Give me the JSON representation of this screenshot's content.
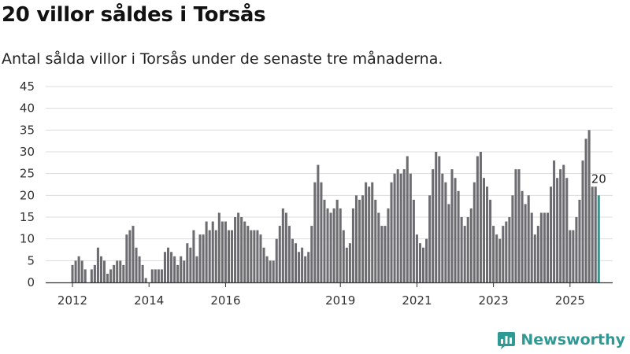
{
  "title": "20 villor såldes i Torsås",
  "subtitle": "Antal sålda villor i Torsås under de senaste tre månaderna.",
  "brand": "Newsworthy",
  "colors": {
    "bar": "#6d6c70",
    "highlight": "#2b9a93",
    "grid": "#dcdcdc",
    "axis": "#333333",
    "brand": "#2e9a93"
  },
  "chart_data": {
    "type": "bar",
    "title": "20 villor såldes i Torsås",
    "xlabel": "",
    "ylabel": "",
    "ylim": [
      0,
      45
    ],
    "yticks": [
      0,
      5,
      10,
      15,
      20,
      25,
      30,
      35,
      40,
      45
    ],
    "xtick_labels": [
      {
        "label": "2012",
        "index": 0
      },
      {
        "label": "2014",
        "index": 24
      },
      {
        "label": "2016",
        "index": 48
      },
      {
        "label": "2019",
        "index": 84
      },
      {
        "label": "2021",
        "index": 108
      },
      {
        "label": "2023",
        "index": 132
      },
      {
        "label": "2025",
        "index": 156
      }
    ],
    "first_month": "2012-01",
    "last_value_label": "20",
    "highlight_last": true,
    "values": [
      4,
      5,
      6,
      5,
      3,
      0,
      3,
      4,
      8,
      6,
      5,
      2,
      3,
      4,
      5,
      5,
      4,
      11,
      12,
      13,
      8,
      6,
      4,
      1,
      0,
      3,
      3,
      3,
      3,
      7,
      8,
      7,
      6,
      4,
      6,
      5,
      9,
      8,
      12,
      6,
      11,
      11,
      14,
      12,
      14,
      12,
      16,
      14,
      14,
      12,
      12,
      15,
      16,
      15,
      14,
      13,
      12,
      12,
      12,
      11,
      8,
      6,
      5,
      5,
      10,
      13,
      17,
      16,
      13,
      10,
      9,
      7,
      8,
      6,
      7,
      13,
      23,
      27,
      23,
      19,
      17,
      16,
      17,
      19,
      17,
      12,
      8,
      9,
      17,
      20,
      19,
      20,
      23,
      22,
      23,
      19,
      16,
      13,
      13,
      17,
      23,
      25,
      26,
      25,
      26,
      29,
      25,
      19,
      11,
      9,
      8,
      10,
      20,
      26,
      30,
      29,
      25,
      23,
      18,
      26,
      24,
      21,
      15,
      13,
      15,
      17,
      23,
      29,
      30,
      24,
      22,
      19,
      13,
      11,
      10,
      13,
      14,
      15,
      20,
      26,
      26,
      21,
      18,
      20,
      16,
      11,
      13,
      16,
      16,
      16,
      22,
      28,
      24,
      26,
      27,
      24,
      12,
      12,
      15,
      19,
      28,
      33,
      35,
      22,
      22,
      20
    ]
  }
}
